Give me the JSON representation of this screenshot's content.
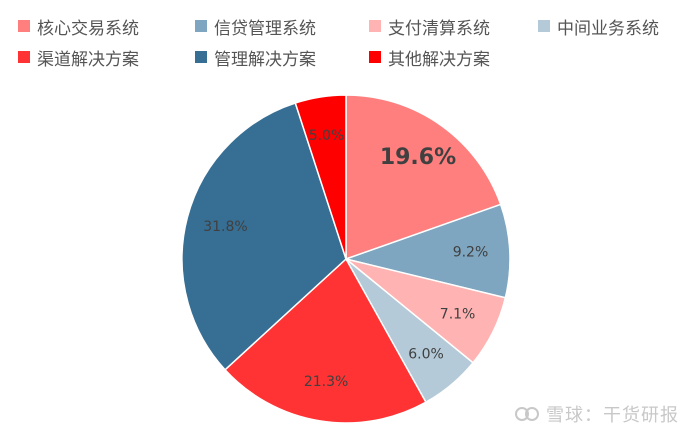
{
  "chart_data": {
    "type": "pie",
    "title": "",
    "legend_position": "top",
    "slices": [
      {
        "name": "核心交易系统",
        "value": 19.6,
        "label": "19.6%",
        "color": "#FF7F7F"
      },
      {
        "name": "信贷管理系统",
        "value": 9.2,
        "label": "9.2%",
        "color": "#7EA6C0"
      },
      {
        "name": "支付清算系统",
        "value": 7.1,
        "label": "7.1%",
        "color": "#FFB3B3"
      },
      {
        "name": "中间业务系统",
        "value": 6.0,
        "label": "6.0%",
        "color": "#B4CAD8"
      },
      {
        "name": "渠道解决方案",
        "value": 21.3,
        "label": "21.3%",
        "color": "#FF3333"
      },
      {
        "name": "管理解决方案",
        "value": 31.8,
        "label": "31.8%",
        "color": "#376E94"
      },
      {
        "name": "其他解决方案",
        "value": 5.0,
        "label": "5.0%",
        "color": "#FF0000"
      }
    ]
  },
  "watermark": {
    "text": "雪球：干货研报"
  }
}
